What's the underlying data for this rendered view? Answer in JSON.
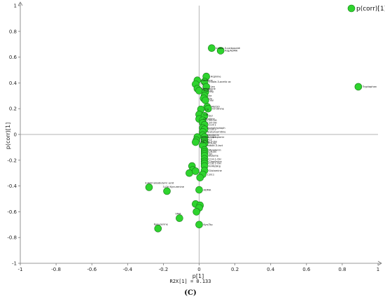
{
  "chart_data": {
    "type": "scatter",
    "title": "",
    "xlabel": "p[1]",
    "ylabel": "p(corr)[1]",
    "footer": "R2X[1] = 0.133",
    "panel_label": "(C)",
    "xlim": [
      -1,
      1
    ],
    "ylim": [
      -1,
      1
    ],
    "xticks": [
      "-1",
      "-0.8",
      "-0.6",
      "-0.4",
      "-0.2",
      "0",
      "0.2",
      "0.4",
      "0.6",
      "0.8",
      "1"
    ],
    "yticks": [
      "1",
      "0.8",
      "0.6",
      "0.4",
      "0.2",
      "0",
      "-0.2",
      "-0.4",
      "-0.6",
      "-0.8",
      "-1"
    ],
    "legend": {
      "label": "p(corr)[1]",
      "position": "top-right",
      "color": "#2ed42e"
    },
    "series": [
      {
        "color": "#2ed42e",
        "points": [
          {
            "label": "Indole-3-carboxaldi",
            "x": 0.07,
            "y": 0.67
          },
          {
            "label": "Arg/ADMA",
            "x": 0.12,
            "y": 0.65
          },
          {
            "label": "Tryptophan",
            "x": 0.89,
            "y": 0.37
          },
          {
            "label": "Arginine",
            "x": 0.04,
            "y": 0.45
          },
          {
            "label": "Histidine",
            "x": -0.01,
            "y": 0.42
          },
          {
            "label": "Indole-3-acetic ac",
            "x": 0.03,
            "y": 0.41
          },
          {
            "label": "C5",
            "x": -0.02,
            "y": 0.39
          },
          {
            "label": "Leu",
            "x": 0.04,
            "y": 0.37
          },
          {
            "label": "Methionine",
            "x": -0.01,
            "y": 0.355
          },
          {
            "label": "Arg/Orn",
            "x": 0.0,
            "y": 0.34
          },
          {
            "label": "Thr",
            "x": 0.035,
            "y": 0.33
          },
          {
            "label": "Ile",
            "x": 0.03,
            "y": 0.3
          },
          {
            "label": "Glu",
            "x": 0.025,
            "y": 0.28
          },
          {
            "label": "Val",
            "x": 0.035,
            "y": 0.265
          },
          {
            "label": "MetSO",
            "x": 0.045,
            "y": 0.215
          },
          {
            "label": "Ornithine",
            "x": 0.05,
            "y": 0.2
          },
          {
            "label": "C3",
            "x": 0.01,
            "y": 0.195
          },
          {
            "label": "C16",
            "x": 0.0,
            "y": 0.155
          },
          {
            "label": "Ser",
            "x": 0.03,
            "y": 0.145
          },
          {
            "label": "Citrulline",
            "x": 0.0,
            "y": 0.12
          },
          {
            "label": "C16-OH",
            "x": 0.02,
            "y": 0.11
          },
          {
            "label": "C14-OH",
            "x": 0.02,
            "y": 0.09
          },
          {
            "label": "C14:1",
            "x": 0.03,
            "y": 0.075
          },
          {
            "label": "Homotryptoph",
            "x": 0.02,
            "y": 0.05
          },
          {
            "label": "C10:2",
            "x": 0.03,
            "y": 0.04
          },
          {
            "label": "Acetylcarnitine",
            "x": 0.02,
            "y": 0.02
          },
          {
            "label": "Serotonin",
            "x": 0.02,
            "y": -0.005
          },
          {
            "label": "C16:1",
            "x": 0.03,
            "y": -0.02
          },
          {
            "label": "Indole-3-propionic",
            "x": -0.01,
            "y": -0.02
          },
          {
            "label": "C14:1",
            "x": -0.015,
            "y": -0.045
          },
          {
            "label": "C2",
            "x": 0.03,
            "y": -0.04
          },
          {
            "label": "C3-OH",
            "x": 0.03,
            "y": -0.055
          },
          {
            "label": "C18-OH",
            "x": -0.02,
            "y": -0.06
          },
          {
            "label": "C5-DC",
            "x": 0.03,
            "y": -0.07
          },
          {
            "label": "Indole-3-lact",
            "x": 0.02,
            "y": -0.085
          },
          {
            "label": "Melatonin",
            "x": 0.03,
            "y": -0.12
          },
          {
            "label": "C6-DC",
            "x": 0.03,
            "y": -0.135
          },
          {
            "label": "Tyr",
            "x": 0.03,
            "y": -0.15
          },
          {
            "label": "Betaine",
            "x": 0.03,
            "y": -0.165
          },
          {
            "label": "C14-1-OH",
            "x": 0.03,
            "y": -0.19
          },
          {
            "label": "Creatinine",
            "x": 0.03,
            "y": -0.21
          },
          {
            "label": "C18:1-OH",
            "x": 0.03,
            "y": -0.225
          },
          {
            "label": "N-MetArg",
            "x": 0.03,
            "y": -0.245
          },
          {
            "label": "Glutamine",
            "x": 0.03,
            "y": -0.28
          },
          {
            "label": "C16:1",
            "x": 0.02,
            "y": -0.31
          },
          {
            "label": "",
            "x": -0.04,
            "y": -0.245
          },
          {
            "label": "",
            "x": -0.035,
            "y": -0.275
          },
          {
            "label": "",
            "x": -0.055,
            "y": -0.3
          },
          {
            "label": "",
            "x": -0.02,
            "y": -0.285
          },
          {
            "label": "",
            "x": 0.005,
            "y": -0.335
          },
          {
            "label": "3-Aminoisobutyric acid",
            "x": -0.28,
            "y": -0.41
          },
          {
            "label": "3-OH Kynurenine",
            "x": -0.18,
            "y": -0.44
          },
          {
            "label": "ADMA",
            "x": 0.0,
            "y": -0.43
          },
          {
            "label": "",
            "x": -0.02,
            "y": -0.54
          },
          {
            "label": "",
            "x": 0.005,
            "y": -0.55
          },
          {
            "label": "",
            "x": 0.0,
            "y": -0.57
          },
          {
            "label": "",
            "x": -0.015,
            "y": -0.6
          },
          {
            "label": "VMA",
            "x": -0.11,
            "y": -0.65
          },
          {
            "label": "Kyn/Trp",
            "x": 0.0,
            "y": -0.7
          },
          {
            "label": "Kynurenine",
            "x": -0.23,
            "y": -0.73
          }
        ]
      }
    ]
  }
}
